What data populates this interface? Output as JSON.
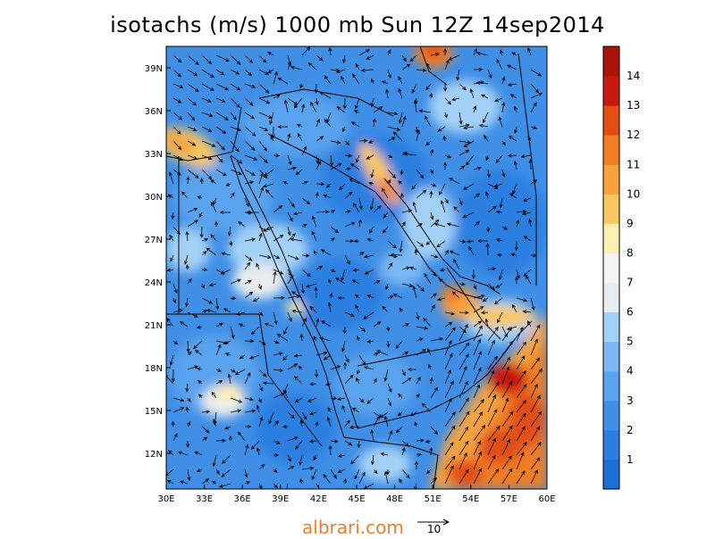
{
  "map": {
    "title": "isotachs (m/s) 1000 mb Sun 12Z 14sep2014",
    "lat_labels": [
      "39N",
      "36N",
      "33N",
      "30N",
      "27N",
      "24N",
      "21N",
      "18N",
      "15N",
      "12N"
    ],
    "lat_values": [
      39,
      36,
      33,
      30,
      27,
      24,
      21,
      18,
      15,
      12
    ],
    "lon_labels": [
      "30E",
      "33E",
      "36E",
      "39E",
      "42E",
      "45E",
      "48E",
      "51E",
      "54E",
      "57E",
      "60E"
    ],
    "lon_values": [
      30,
      33,
      36,
      39,
      42,
      45,
      48,
      51,
      54,
      57,
      60
    ],
    "lat_range": [
      9.5,
      40.5
    ],
    "lon_range": [
      30,
      60
    ],
    "colorbar": {
      "labels": [
        "1",
        "2",
        "3",
        "4",
        "5",
        "6",
        "7",
        "8",
        "9",
        "10",
        "11",
        "12",
        "13",
        "14"
      ],
      "colors": [
        "#1e6ed8",
        "#2c7fe0",
        "#3f8fe6",
        "#5aa3ee",
        "#7bb8f3",
        "#a3d0f7",
        "#e9ecef",
        "#f4f4f4",
        "#fdf0b0",
        "#fbc760",
        "#f7a23c",
        "#f27d22",
        "#e24d12",
        "#c8190e",
        "#aa1408"
      ]
    },
    "footer": "albrari.com",
    "reference_vector_label": "10"
  }
}
